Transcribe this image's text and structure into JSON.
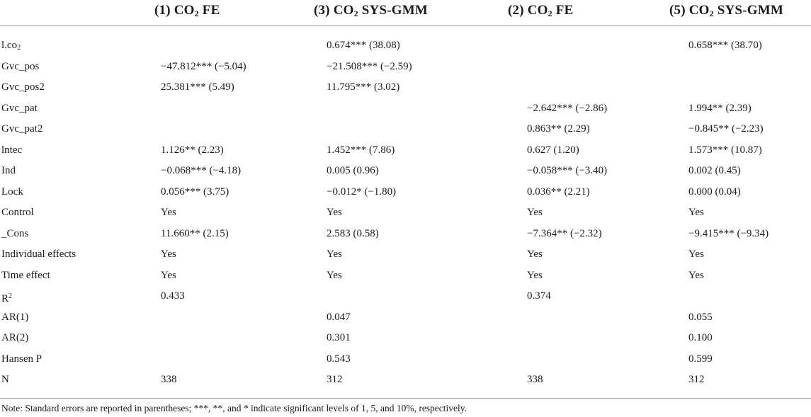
{
  "headers": [
    {
      "pre": "(1) CO",
      "sub": "2",
      "post": " FE"
    },
    {
      "pre": "(3) CO",
      "sub": "2",
      "post": " SYS-GMM"
    },
    {
      "pre": "(2) CO",
      "sub": "2",
      "post": " FE"
    },
    {
      "pre": "(5) CO",
      "sub": "2",
      "post": " SYS-GMM"
    }
  ],
  "rows": [
    {
      "label_pre": "l.co",
      "label_sub": "2",
      "label_sup": "",
      "cells": [
        "",
        "0.674*** (38.08)",
        "",
        "0.658*** (38.70)"
      ]
    },
    {
      "label_pre": "Gvc_pos",
      "label_sub": "",
      "label_sup": "",
      "cells": [
        "−47.812*** (−5.04)",
        "−21.508*** (−2.59)",
        "",
        ""
      ]
    },
    {
      "label_pre": "Gvc_pos2",
      "label_sub": "",
      "label_sup": "",
      "cells": [
        "25.381*** (5.49)",
        "11.795*** (3.02)",
        "",
        ""
      ]
    },
    {
      "label_pre": "Gvc_pat",
      "label_sub": "",
      "label_sup": "",
      "cells": [
        "",
        "",
        "−2.642*** (−2.86)",
        "1.994** (2.39)"
      ]
    },
    {
      "label_pre": "Gvc_pat2",
      "label_sub": "",
      "label_sup": "",
      "cells": [
        "",
        "",
        "0.863** (2.29)",
        "−0.845** (−2.23)"
      ]
    },
    {
      "label_pre": "lntec",
      "label_sub": "",
      "label_sup": "",
      "cells": [
        "1.126** (2.23)",
        "1.452*** (7.86)",
        "0.627 (1.20)",
        "1.573*** (10.87)"
      ]
    },
    {
      "label_pre": "Ind",
      "label_sub": "",
      "label_sup": "",
      "cells": [
        "−0.068*** (−4.18)",
        "0.005 (0.96)",
        "−0.058*** (−3.40)",
        "0.002 (0.45)"
      ]
    },
    {
      "label_pre": "Lock",
      "label_sub": "",
      "label_sup": "",
      "cells": [
        "0.056*** (3.75)",
        "−0.012* (−1.80)",
        "0.036** (2.21)",
        "0.000 (0.04)"
      ]
    },
    {
      "label_pre": "Control",
      "label_sub": "",
      "label_sup": "",
      "cells": [
        "Yes",
        "Yes",
        "Yes",
        "Yes"
      ]
    },
    {
      "label_pre": "_Cons",
      "label_sub": "",
      "label_sup": "",
      "cells": [
        "11.660** (2.15)",
        "2.583 (0.58)",
        "−7.364** (−2.32)",
        "−9.415*** (−9.34)"
      ]
    },
    {
      "label_pre": "Individual effects",
      "label_sub": "",
      "label_sup": "",
      "cells": [
        "Yes",
        "Yes",
        "Yes",
        "Yes"
      ]
    },
    {
      "label_pre": "Time effect",
      "label_sub": "",
      "label_sup": "",
      "cells": [
        "Yes",
        "Yes",
        "Yes",
        "Yes"
      ]
    },
    {
      "label_pre": "R",
      "label_sub": "",
      "label_sup": "2",
      "cells": [
        "0.433",
        "",
        "0.374",
        ""
      ]
    },
    {
      "label_pre": "AR(1)",
      "label_sub": "",
      "label_sup": "",
      "cells": [
        "",
        "0.047",
        "",
        "0.055"
      ]
    },
    {
      "label_pre": "AR(2)",
      "label_sub": "",
      "label_sup": "",
      "cells": [
        "",
        "0.301",
        "",
        "0.100"
      ]
    },
    {
      "label_pre": "Hansen P",
      "label_sub": "",
      "label_sup": "",
      "cells": [
        "",
        "0.543",
        "",
        "0.599"
      ]
    },
    {
      "label_pre": "N",
      "label_sub": "",
      "label_sup": "",
      "cells": [
        "338",
        "312",
        "338",
        "312"
      ]
    }
  ],
  "note": "Note: Standard errors are reported in parentheses; ***, **, and * indicate significant levels of 1, 5, and 10%, respectively."
}
